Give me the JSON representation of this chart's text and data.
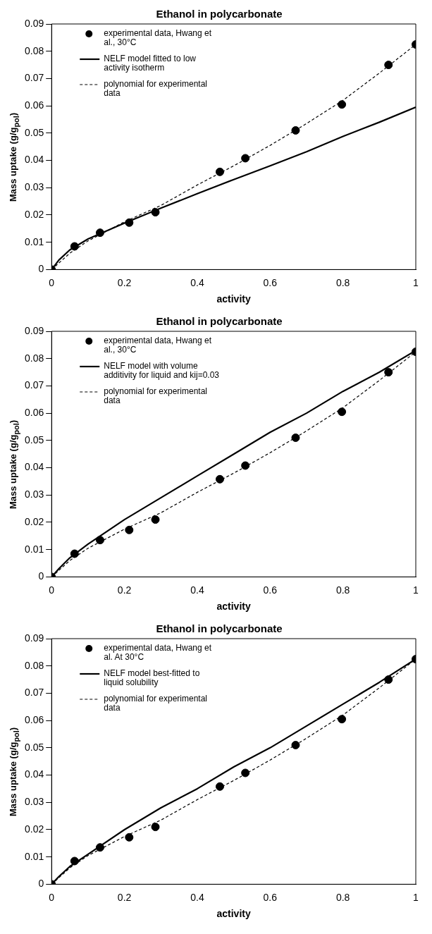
{
  "chart_data": [
    {
      "type": "line",
      "title": "Ethanol in polycarbonate",
      "xlabel": "activity",
      "ylabel": "Mass uptake  (g/g$_{pol}$)",
      "xlim": [
        0,
        1
      ],
      "xticks": [
        0,
        0.2,
        0.4,
        0.6,
        0.8,
        1
      ],
      "ylim": [
        0,
        0.09
      ],
      "yticks": [
        0,
        0.01,
        0.02,
        0.03,
        0.04,
        0.05,
        0.06,
        0.07,
        0.08,
        0.09
      ],
      "grid": false,
      "legend": "top left",
      "series": [
        {
          "name": "experimental data, Hwang et al., 30°C",
          "type": "scatter",
          "marker": "circle",
          "color": "#000000",
          "x": [
            0,
            0.063,
            0.133,
            0.213,
            0.285,
            0.462,
            0.532,
            0.67,
            0.797,
            0.925,
            1
          ],
          "values": [
            0,
            0.0085,
            0.0135,
            0.0172,
            0.021,
            0.0358,
            0.0408,
            0.051,
            0.0605,
            0.075,
            0.0825
          ]
        },
        {
          "name": "NELF model fitted to low activity isotherm",
          "type": "line",
          "line_style": "solid",
          "marker": "none",
          "color": "#000000",
          "x": [
            0,
            0.02,
            0.05,
            0.1,
            0.2,
            0.3,
            0.4,
            0.5,
            0.6,
            0.7,
            0.8,
            0.9,
            1
          ],
          "values": [
            0,
            0.0035,
            0.0072,
            0.0112,
            0.017,
            0.0225,
            0.0278,
            0.033,
            0.038,
            0.0432,
            0.0488,
            0.054,
            0.0595
          ]
        },
        {
          "name": "polynomial for experimental data",
          "type": "line",
          "line_style": "dashed",
          "marker": "none",
          "color": "#000000",
          "x": [
            0,
            0.05,
            0.1,
            0.2,
            0.3,
            0.4,
            0.5,
            0.6,
            0.7,
            0.8,
            0.9,
            1
          ],
          "values": [
            0,
            0.006,
            0.0105,
            0.0175,
            0.0235,
            0.031,
            0.038,
            0.0455,
            0.0535,
            0.062,
            0.072,
            0.0825
          ]
        }
      ]
    },
    {
      "type": "line",
      "title": "Ethanol in polycarbonate",
      "xlabel": "activity",
      "ylabel": "Mass uptake  (g/g$_{pol}$)",
      "xlim": [
        0,
        1
      ],
      "xticks": [
        0,
        0.2,
        0.4,
        0.6,
        0.8,
        1
      ],
      "ylim": [
        0,
        0.09
      ],
      "yticks": [
        0,
        0.01,
        0.02,
        0.03,
        0.04,
        0.05,
        0.06,
        0.07,
        0.08,
        0.09
      ],
      "grid": false,
      "legend": "top left",
      "series": [
        {
          "name": "experimental data, Hwang et al., 30°C",
          "type": "scatter",
          "marker": "circle",
          "color": "#000000",
          "x": [
            0,
            0.063,
            0.133,
            0.213,
            0.285,
            0.462,
            0.532,
            0.67,
            0.797,
            0.925,
            1
          ],
          "values": [
            0,
            0.0085,
            0.0135,
            0.0172,
            0.021,
            0.0358,
            0.0408,
            0.051,
            0.0605,
            0.075,
            0.0825
          ]
        },
        {
          "name": "NELF model with volume additivity for liquid and kij=0.03",
          "type": "line",
          "line_style": "solid",
          "marker": "none",
          "color": "#000000",
          "x": [
            0,
            0.02,
            0.05,
            0.1,
            0.2,
            0.3,
            0.4,
            0.5,
            0.6,
            0.7,
            0.8,
            0.9,
            1
          ],
          "values": [
            0,
            0.003,
            0.007,
            0.012,
            0.021,
            0.029,
            0.037,
            0.045,
            0.053,
            0.06,
            0.068,
            0.075,
            0.083
          ]
        },
        {
          "name": "polynomial for experimental data",
          "type": "line",
          "line_style": "dashed",
          "marker": "none",
          "color": "#000000",
          "x": [
            0,
            0.05,
            0.1,
            0.2,
            0.3,
            0.4,
            0.5,
            0.6,
            0.7,
            0.8,
            0.9,
            1
          ],
          "values": [
            0,
            0.006,
            0.0105,
            0.0175,
            0.0235,
            0.031,
            0.038,
            0.0455,
            0.0535,
            0.062,
            0.072,
            0.0825
          ]
        }
      ]
    },
    {
      "type": "line",
      "title": "Ethanol in polycarbonate",
      "xlabel": "activity",
      "ylabel": "Mass uptake  (g/g$_{pol}$)",
      "xlim": [
        0,
        1
      ],
      "xticks": [
        0,
        0.2,
        0.4,
        0.6,
        0.8,
        1
      ],
      "ylim": [
        0,
        0.09
      ],
      "yticks": [
        0,
        0.01,
        0.02,
        0.03,
        0.04,
        0.05,
        0.06,
        0.07,
        0.08,
        0.09
      ],
      "grid": false,
      "legend": "top left",
      "series": [
        {
          "name": "experimental data, Hwang et al. At 30°C",
          "type": "scatter",
          "marker": "circle",
          "color": "#000000",
          "x": [
            0,
            0.063,
            0.133,
            0.213,
            0.285,
            0.462,
            0.532,
            0.67,
            0.797,
            0.925,
            1
          ],
          "values": [
            0,
            0.0085,
            0.0135,
            0.0172,
            0.021,
            0.0358,
            0.0408,
            0.051,
            0.0605,
            0.075,
            0.0825
          ]
        },
        {
          "name": "NELF model best-fitted to liquid solubility",
          "type": "line",
          "line_style": "solid",
          "marker": "none",
          "color": "#000000",
          "x": [
            0,
            0.02,
            0.05,
            0.1,
            0.2,
            0.3,
            0.4,
            0.5,
            0.6,
            0.7,
            0.8,
            0.9,
            1
          ],
          "values": [
            0,
            0.0028,
            0.0065,
            0.011,
            0.02,
            0.028,
            0.035,
            0.043,
            0.05,
            0.058,
            0.066,
            0.074,
            0.0825
          ]
        },
        {
          "name": "polynomial for experimental data",
          "type": "line",
          "line_style": "dashed",
          "marker": "none",
          "color": "#000000",
          "x": [
            0,
            0.05,
            0.1,
            0.2,
            0.3,
            0.4,
            0.5,
            0.6,
            0.7,
            0.8,
            0.9,
            1
          ],
          "values": [
            0,
            0.006,
            0.0105,
            0.0175,
            0.0235,
            0.031,
            0.038,
            0.0455,
            0.0535,
            0.062,
            0.072,
            0.0825
          ]
        }
      ]
    }
  ]
}
